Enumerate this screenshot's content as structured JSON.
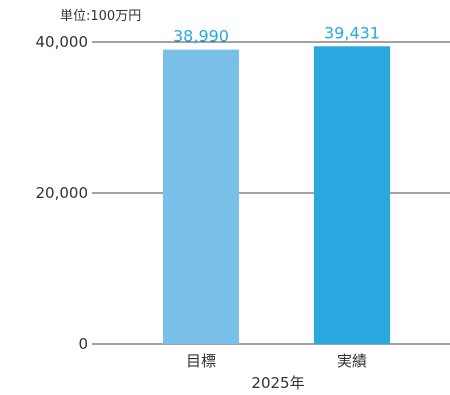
{
  "chart_data": {
    "type": "bar",
    "unit_label": "単位:100万円",
    "categories": [
      "目標",
      "実績"
    ],
    "values": [
      38990,
      39431
    ],
    "data_labels": [
      "38,990",
      "39,431"
    ],
    "bar_colors": [
      "#7abfe8",
      "#29a8e0"
    ],
    "label_color": "#29a8e0",
    "xlabel": "2025年",
    "ylabel": "",
    "ylim": [
      0,
      40000
    ],
    "yticks": [
      0,
      20000,
      40000
    ],
    "ytick_labels": [
      "0",
      "20,000",
      "40,000"
    ],
    "grid": true
  }
}
